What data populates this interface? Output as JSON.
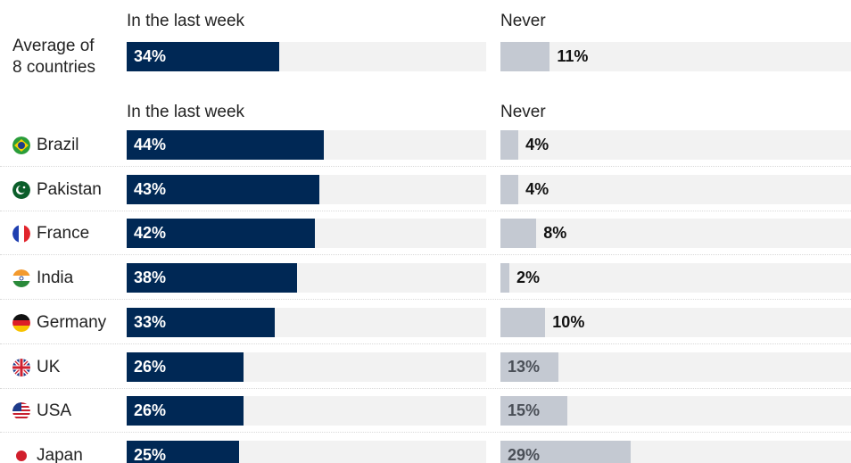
{
  "chart_data": {
    "type": "bar",
    "orientation": "horizontal",
    "panels": [
      {
        "name": "In the last week",
        "color": "#002855"
      },
      {
        "name": "Never",
        "color": "#c4c9d2"
      }
    ],
    "summary": {
      "label": [
        "Average of",
        "8 countries"
      ],
      "last_week": 34,
      "never": 11,
      "last_week_label": "34%",
      "never_label": "11%"
    },
    "rows": [
      {
        "country": "Brazil",
        "flag": "brazil-flag-icon",
        "last_week": 44,
        "never": 4,
        "last_week_label": "44%",
        "never_label": "4%"
      },
      {
        "country": "Pakistan",
        "flag": "pakistan-flag-icon",
        "last_week": 43,
        "never": 4,
        "last_week_label": "43%",
        "never_label": "4%"
      },
      {
        "country": "France",
        "flag": "france-flag-icon",
        "last_week": 42,
        "never": 8,
        "last_week_label": "42%",
        "never_label": "8%"
      },
      {
        "country": "India",
        "flag": "india-flag-icon",
        "last_week": 38,
        "never": 2,
        "last_week_label": "38%",
        "never_label": "2%"
      },
      {
        "country": "Germany",
        "flag": "germany-flag-icon",
        "last_week": 33,
        "never": 10,
        "last_week_label": "33%",
        "never_label": "10%"
      },
      {
        "country": "UK",
        "flag": "uk-flag-icon",
        "last_week": 26,
        "never": 13,
        "last_week_label": "26%",
        "never_label": "13%"
      },
      {
        "country": "USA",
        "flag": "usa-flag-icon",
        "last_week": 26,
        "never": 15,
        "last_week_label": "26%",
        "never_label": "15%"
      },
      {
        "country": "Japan",
        "flag": "japan-flag-icon",
        "last_week": 25,
        "never": 29,
        "last_week_label": "25%",
        "never_label": "29%"
      }
    ],
    "xlim": [
      0,
      80
    ],
    "grid": false,
    "legend": "none"
  }
}
